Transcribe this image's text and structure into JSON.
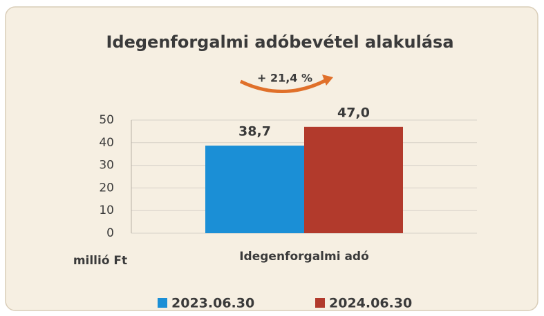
{
  "chart_data": {
    "type": "bar",
    "title": "Idegenforgalmi adóbevétel alakulása",
    "annotation": "+ 21,4 %",
    "y_label": "millió Ft",
    "categories": [
      "Idegenforgalmi adó"
    ],
    "series": [
      {
        "name": "2023.06.30",
        "color": "#1b8fd6",
        "values": [
          38.7
        ],
        "value_labels": [
          "38,7"
        ]
      },
      {
        "name": "2024.06.30",
        "color": "#b23a2c",
        "values": [
          47.0
        ],
        "value_labels": [
          "47,0"
        ]
      }
    ],
    "ylim": [
      0,
      50
    ],
    "yticks": [
      0,
      10,
      20,
      30,
      40,
      50
    ],
    "grid": true,
    "legend": "bottom"
  }
}
